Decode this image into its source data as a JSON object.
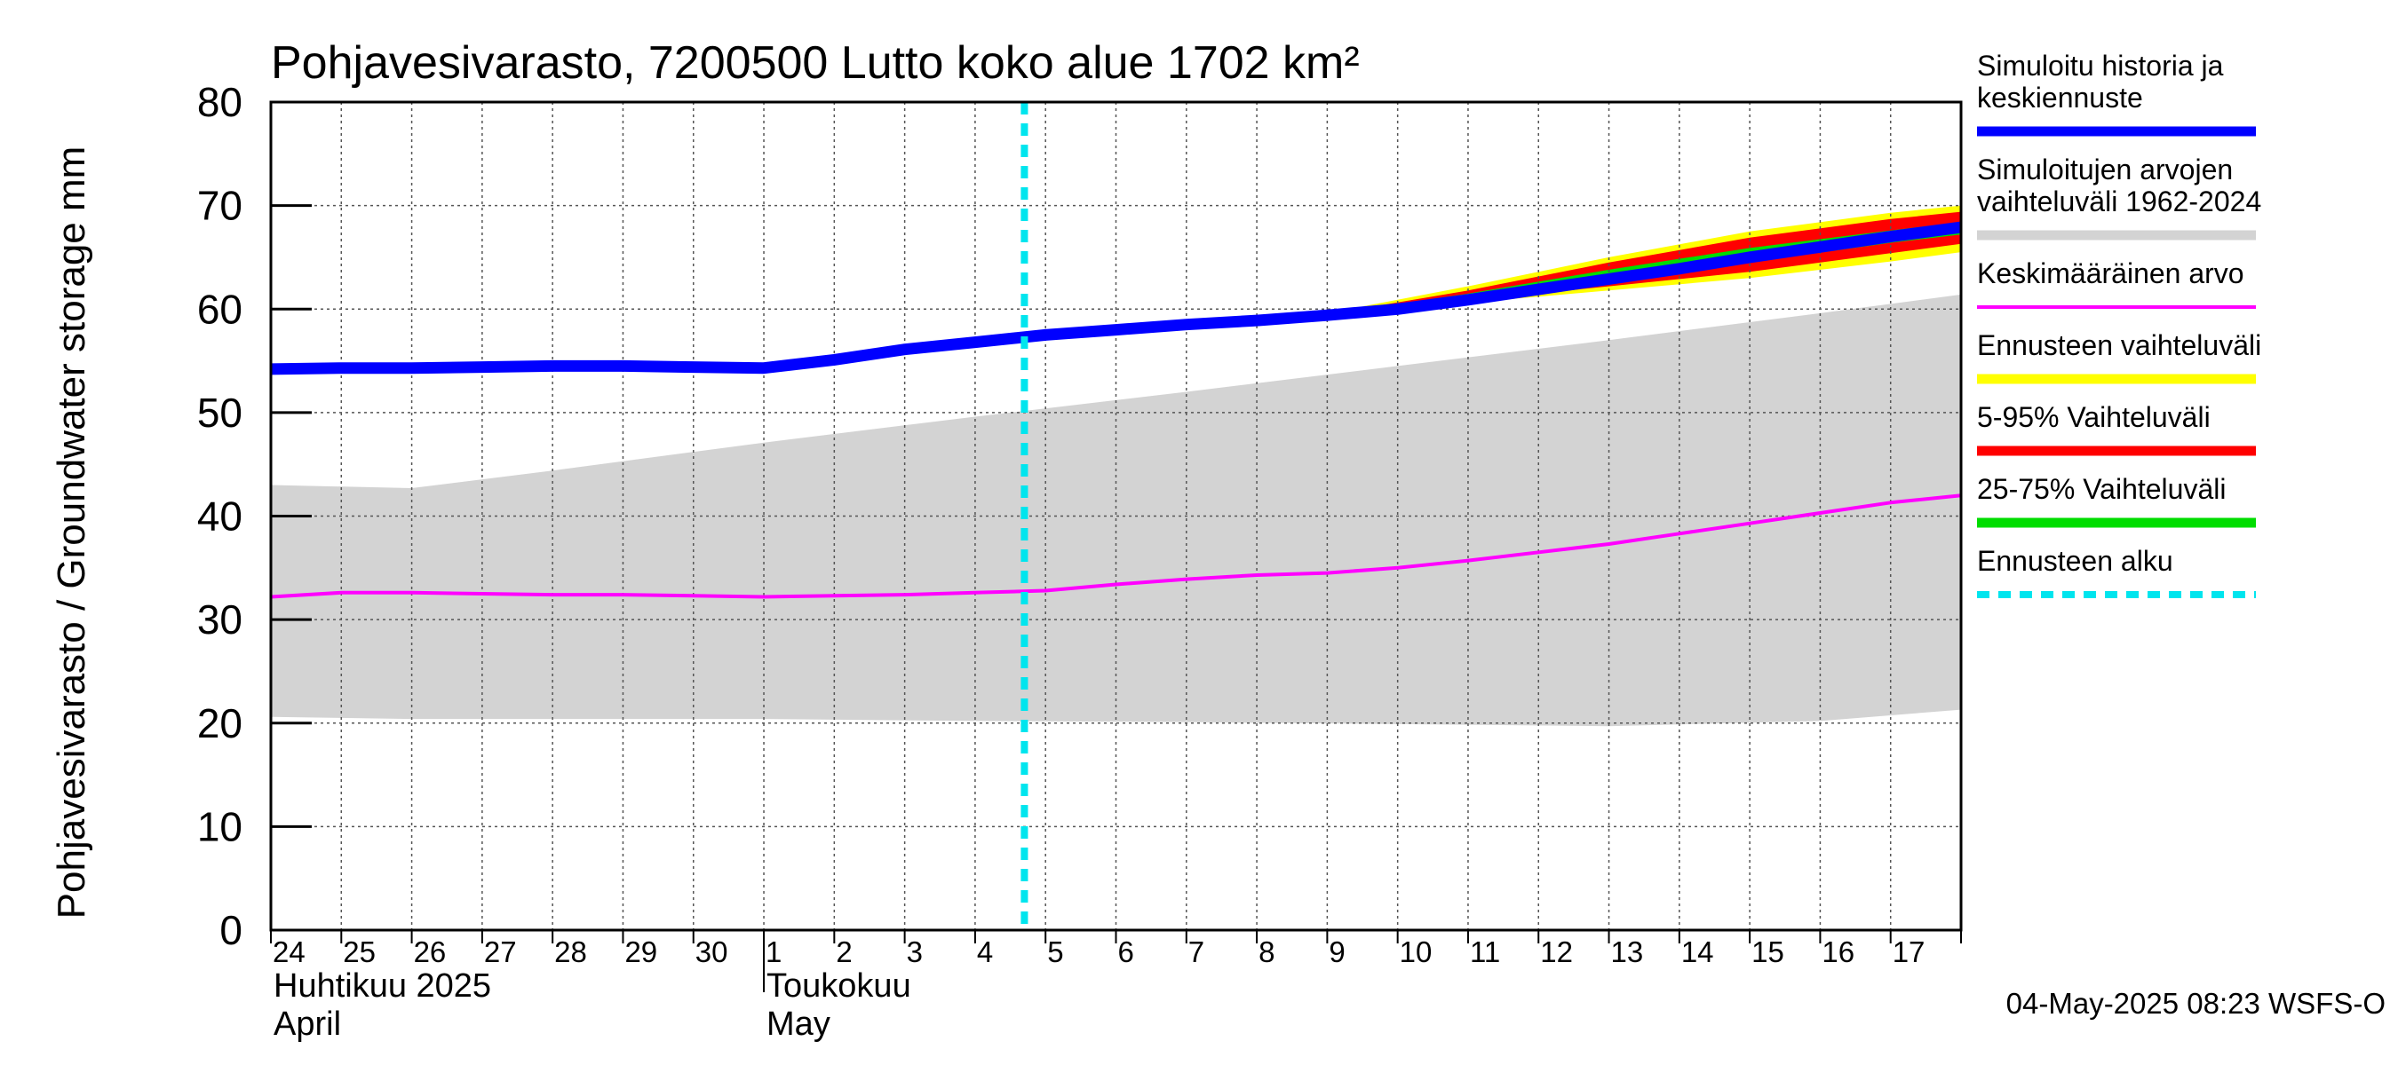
{
  "chart_data": {
    "type": "area",
    "title": "Pohjavesivarasto, 7200500 Lutto koko alue 1702 km²",
    "ylabel": "Pohjavesivarasto / Groundwater storage   mm",
    "ylim": [
      0,
      80
    ],
    "yticks": [
      "0",
      "10",
      "20",
      "30",
      "40",
      "50",
      "60",
      "70",
      "80"
    ],
    "xlim": [
      0,
      24
    ],
    "day_labels": [
      "24",
      "25",
      "26",
      "27",
      "28",
      "29",
      "30",
      "1",
      "2",
      "3",
      "4",
      "5",
      "6",
      "7",
      "8",
      "9",
      "10",
      "11",
      "12",
      "13",
      "14",
      "15",
      "16",
      "17"
    ],
    "months": [
      {
        "fi": "Huhtikuu  2025",
        "en": "April",
        "start_day": 0
      },
      {
        "fi": "Toukokuu",
        "en": "May",
        "start_day": 7
      }
    ],
    "grid": true,
    "forecast_start_day": 10.7,
    "series": [
      {
        "name": "Simuloitujen arvojen vaihteluväli 1962-2024",
        "kind": "band",
        "color": "#d3d3d3",
        "x": [
          0,
          2,
          4,
          7,
          10,
          13,
          16,
          19,
          22,
          24
        ],
        "low": [
          20.6,
          20.4,
          20.4,
          20.4,
          20.2,
          20.1,
          19.9,
          19.7,
          20.2,
          21.3
        ],
        "high": [
          43.0,
          42.7,
          44.4,
          47.1,
          49.6,
          52.0,
          54.5,
          57.0,
          59.6,
          61.4
        ]
      },
      {
        "name": "Keskimääräinen arvo",
        "kind": "line",
        "color": "#ff00ff",
        "x": [
          0,
          1,
          2,
          3,
          4,
          5,
          6,
          7,
          8,
          9,
          10,
          11,
          12,
          13,
          14,
          15,
          16,
          17,
          18,
          19,
          20,
          21,
          22,
          23,
          24
        ],
        "y": [
          32.2,
          32.6,
          32.6,
          32.5,
          32.4,
          32.4,
          32.3,
          32.2,
          32.3,
          32.4,
          32.6,
          32.8,
          33.4,
          33.9,
          34.3,
          34.5,
          35.0,
          35.7,
          36.5,
          37.3,
          38.3,
          39.3,
          40.3,
          41.3,
          42.0
        ]
      },
      {
        "name": "Ennusteen vaihteluväli",
        "kind": "band",
        "color": "#ffff00",
        "x": [
          15,
          17,
          19,
          21,
          23,
          24
        ],
        "low": [
          59.4,
          60.6,
          61.8,
          63.0,
          64.6,
          65.5
        ],
        "high": [
          59.6,
          62.2,
          65.0,
          67.5,
          69.3,
          70.0
        ]
      },
      {
        "name": "5-95% Vaihteluväli",
        "kind": "band",
        "color": "#ff0000",
        "x": [
          15,
          17,
          19,
          21,
          23,
          24
        ],
        "low": [
          59.5,
          60.8,
          62.2,
          63.6,
          65.4,
          66.3
        ],
        "high": [
          59.5,
          61.8,
          64.5,
          66.9,
          68.7,
          69.4
        ]
      },
      {
        "name": "25-75% Vaihteluväli",
        "kind": "band",
        "color": "#00dd00",
        "x": [
          15,
          17,
          19,
          21,
          23,
          24
        ],
        "low": [
          59.5,
          61.0,
          62.8,
          64.5,
          66.4,
          67.2
        ],
        "high": [
          59.5,
          61.5,
          63.8,
          65.9,
          67.6,
          68.4
        ]
      },
      {
        "name": "Simuloitu historia ja keskiennuste",
        "kind": "line",
        "color": "#0000ff",
        "x": [
          0,
          1,
          2,
          3,
          4,
          5,
          6,
          7,
          8,
          9,
          10,
          11,
          12,
          13,
          14,
          15,
          16,
          17,
          18,
          19,
          20,
          21,
          22,
          23,
          24
        ],
        "y": [
          54.2,
          54.3,
          54.3,
          54.4,
          54.5,
          54.5,
          54.4,
          54.3,
          55.1,
          56.1,
          56.8,
          57.5,
          58.0,
          58.5,
          58.9,
          59.4,
          60.0,
          60.9,
          61.9,
          62.9,
          63.9,
          65.0,
          66.0,
          67.0,
          67.9
        ]
      }
    ],
    "legend": [
      {
        "text": "Simuloitu historia ja keskiennuste",
        "color": "#0000ff",
        "style": "solid-thick"
      },
      {
        "text": "Simuloitujen arvojen vaihteluväli 1962-2024",
        "color": "#d3d3d3",
        "style": "solid-thick"
      },
      {
        "text": "Keskimääräinen arvo",
        "color": "#ff00ff",
        "style": "solid-thin"
      },
      {
        "text": "Ennusteen vaihteluväli",
        "color": "#ffff00",
        "style": "solid-thick"
      },
      {
        "text": "5-95% Vaihteluväli",
        "color": "#ff0000",
        "style": "solid-thick"
      },
      {
        "text": "25-75% Vaihteluväli",
        "color": "#00dd00",
        "style": "solid-thick"
      },
      {
        "text": "Ennusteen alku",
        "color": "#00e5ee",
        "style": "dashed"
      }
    ],
    "legend_placement": "right",
    "timestamp": "04-May-2025 08:23 WSFS-O"
  }
}
